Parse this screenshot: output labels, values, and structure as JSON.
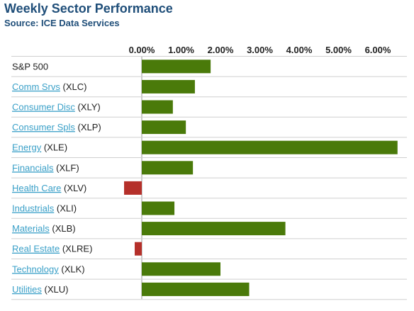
{
  "header": {
    "title": "Weekly Sector Performance",
    "source": "Source: ICE Data Services"
  },
  "colors": {
    "positive": "#4a7a0a",
    "negative": "#b5302a",
    "link": "#3aa0c8",
    "title": "#1f4e79",
    "grid": "#cfcfcf"
  },
  "chart_data": {
    "type": "bar",
    "orientation": "horizontal",
    "title": "Weekly Sector Performance",
    "subtitle": "Source: ICE Data Services",
    "xlim": [
      -0.5,
      6.5
    ],
    "xticks": [
      0,
      1,
      2,
      3,
      4,
      5,
      6
    ],
    "xtick_labels": [
      "0.00%",
      "1.00%",
      "2.00%",
      "3.00%",
      "4.00%",
      "5.00%",
      "6.00%"
    ],
    "xaxis_position": "top",
    "unit": "%",
    "grid": "horizontal row separators",
    "categories": [
      {
        "name": "S&P 500",
        "ticker": "",
        "link": false,
        "value": 1.75
      },
      {
        "name": "Comm Srvs",
        "ticker": "(XLC)",
        "link": true,
        "value": 1.35
      },
      {
        "name": "Consumer Disc",
        "ticker": "(XLY)",
        "link": true,
        "value": 0.79
      },
      {
        "name": "Consumer Spls",
        "ticker": "(XLP)",
        "link": true,
        "value": 1.12
      },
      {
        "name": "Energy",
        "ticker": "(XLE)",
        "link": true,
        "value": 6.5
      },
      {
        "name": "Financials",
        "ticker": "(XLF)",
        "link": true,
        "value": 1.3
      },
      {
        "name": "Health Care",
        "ticker": "(XLV)",
        "link": true,
        "value": -0.45
      },
      {
        "name": "Industrials",
        "ticker": "(XLI)",
        "link": true,
        "value": 0.83
      },
      {
        "name": "Materials",
        "ticker": "(XLB)",
        "link": true,
        "value": 3.65
      },
      {
        "name": "Real Estate",
        "ticker": "(XLRE)",
        "link": true,
        "value": -0.18
      },
      {
        "name": "Technology",
        "ticker": "(XLK)",
        "link": true,
        "value": 2.0
      },
      {
        "name": "Utilities",
        "ticker": "(XLU)",
        "link": true,
        "value": 2.73
      }
    ]
  }
}
